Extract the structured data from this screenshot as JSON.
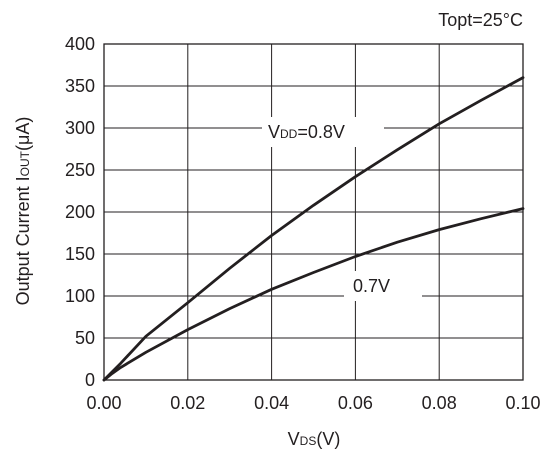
{
  "chart_data": {
    "type": "line",
    "title": "",
    "note": "Topt=25°C",
    "xlabel": {
      "main": "V",
      "sub": "DS",
      "suffix": "(V)"
    },
    "ylabel": {
      "main": "Output Current I",
      "sub": "OUT",
      "suffix": "(μA)"
    },
    "xlim": [
      0,
      0.1
    ],
    "ylim": [
      0,
      400
    ],
    "x_ticks": [
      0,
      0.02,
      0.04,
      0.06,
      0.08,
      0.1
    ],
    "x_tick_labels": [
      "0.00",
      "0.02",
      "0.04",
      "0.06",
      "0.08",
      "0.10"
    ],
    "y_ticks": [
      0,
      50,
      100,
      150,
      200,
      250,
      300,
      350,
      400
    ],
    "y_tick_labels": [
      "0",
      "50",
      "100",
      "150",
      "200",
      "250",
      "300",
      "350",
      "400"
    ],
    "grid": true,
    "series": [
      {
        "name": "VDD=0.8V",
        "label": {
          "main": "V",
          "sub": "DD",
          "suffix": "=0.8V"
        },
        "x": [
          0,
          0.002,
          0.004,
          0.01,
          0.02,
          0.03,
          0.04,
          0.05,
          0.06,
          0.07,
          0.08,
          0.09,
          0.1
        ],
        "y": [
          0,
          10,
          20,
          52,
          92,
          133,
          172,
          208,
          242,
          274,
          305,
          333,
          360
        ]
      },
      {
        "name": "0.7V",
        "label": {
          "main": "0.7V",
          "sub": "",
          "suffix": ""
        },
        "x": [
          0,
          0.002,
          0.004,
          0.01,
          0.02,
          0.03,
          0.04,
          0.05,
          0.06,
          0.07,
          0.08,
          0.09,
          0.1
        ],
        "y": [
          0,
          8,
          15,
          33,
          60,
          85,
          108,
          128,
          147,
          164,
          179,
          192,
          204
        ]
      }
    ]
  }
}
